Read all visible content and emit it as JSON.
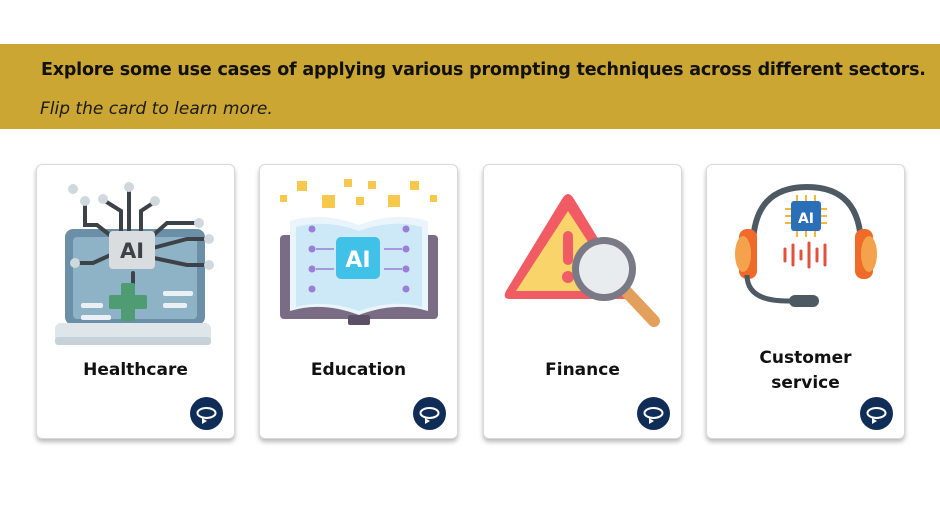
{
  "banner": {
    "title": "Explore some use cases of applying various prompting techniques across different sectors.",
    "subtitle": "Flip the card to learn more."
  },
  "cards": [
    {
      "label": "Healthcare",
      "icon": "healthcare-ai-laptop-icon"
    },
    {
      "label": "Education",
      "icon": "education-ai-book-icon"
    },
    {
      "label": "Finance",
      "icon": "finance-warning-magnifier-icon"
    },
    {
      "label": "Customer service",
      "icon": "customer-service-ai-headset-icon"
    }
  ],
  "flip_icon": "flip-rotate-icon",
  "colors": {
    "banner": "#cba632",
    "flip_button": "#0f2d57"
  }
}
